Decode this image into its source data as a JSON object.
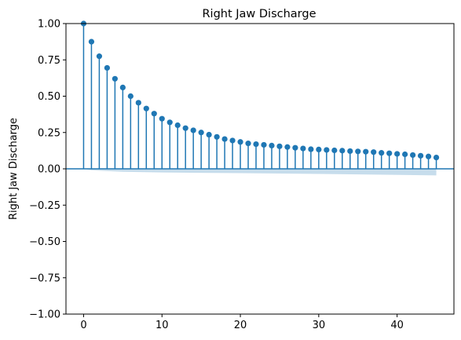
{
  "chart_data": {
    "type": "stem",
    "title": "Right Jaw Discharge",
    "xlabel": "",
    "ylabel": "Right Jaw Discharge",
    "xlim": [
      -2.25,
      47.25
    ],
    "ylim": [
      -1.0,
      1.0
    ],
    "xticks": [
      0,
      10,
      20,
      30,
      40
    ],
    "yticks": [
      -1.0,
      -0.75,
      -0.5,
      -0.25,
      0.0,
      0.25,
      0.5,
      0.75,
      1.0
    ],
    "xtick_labels": [
      "0",
      "10",
      "20",
      "30",
      "40"
    ],
    "ytick_labels": [
      "−1.00",
      "−0.75",
      "−0.50",
      "−0.25",
      "0.00",
      "0.25",
      "0.50",
      "0.75",
      "1.00"
    ],
    "lags": [
      0,
      1,
      2,
      3,
      4,
      5,
      6,
      7,
      8,
      9,
      10,
      11,
      12,
      13,
      14,
      15,
      16,
      17,
      18,
      19,
      20,
      21,
      22,
      23,
      24,
      25,
      26,
      27,
      28,
      29,
      30,
      31,
      32,
      33,
      34,
      35,
      36,
      37,
      38,
      39,
      40,
      41,
      42,
      43,
      44,
      45
    ],
    "values": [
      1.0,
      0.875,
      0.775,
      0.695,
      0.62,
      0.56,
      0.5,
      0.455,
      0.415,
      0.38,
      0.345,
      0.32,
      0.3,
      0.28,
      0.265,
      0.25,
      0.235,
      0.22,
      0.205,
      0.195,
      0.185,
      0.175,
      0.17,
      0.165,
      0.16,
      0.155,
      0.15,
      0.145,
      0.14,
      0.135,
      0.133,
      0.13,
      0.127,
      0.125,
      0.122,
      0.12,
      0.118,
      0.115,
      0.11,
      0.107,
      0.103,
      0.1,
      0.095,
      0.09,
      0.085,
      0.078
    ],
    "confidence_band": {
      "lags": [
        0,
        1,
        5,
        10,
        20,
        30,
        45
      ],
      "upper": [
        0.0,
        0.0,
        0.0,
        0.0,
        0.0,
        0.0,
        0.0
      ],
      "lower": [
        0.0,
        -0.01,
        -0.02,
        -0.025,
        -0.03,
        -0.035,
        -0.045
      ]
    },
    "zero_line": true,
    "grid": false,
    "colors": {
      "marker": "#1f77b4",
      "stem": "#1f77b4",
      "band": "#1f77b4",
      "axis": "#000000"
    }
  }
}
